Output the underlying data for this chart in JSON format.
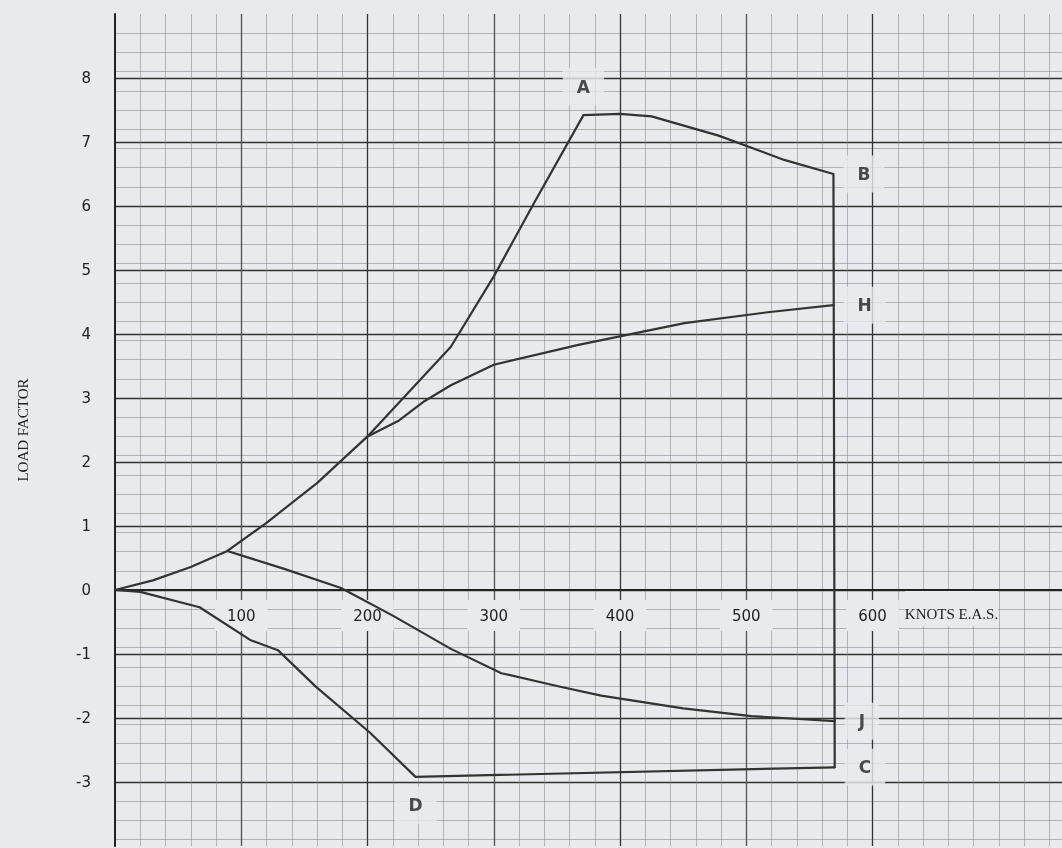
{
  "chart_data": {
    "type": "line",
    "xlabel": "KNOTS E.A.S.",
    "ylabel": "LOAD FACTOR",
    "xlim": [
      0,
      750
    ],
    "ylim": [
      -4,
      9
    ],
    "xticks": [
      100,
      200,
      300,
      400,
      500,
      600
    ],
    "yticks": [
      -3,
      -2,
      -1,
      0,
      1,
      2,
      3,
      4,
      5,
      6,
      7,
      8
    ],
    "grid": true,
    "marker": "none",
    "line_style": "solid",
    "series": [
      {
        "color": "#333333",
        "x": [
          0,
          30,
          60,
          89,
          120,
          160,
          200,
          266,
          300,
          332,
          371,
          400,
          425,
          478,
          530,
          569,
          570
        ],
        "values": [
          0,
          0.15,
          0.36,
          0.61,
          1.05,
          1.67,
          2.4,
          3.8,
          4.9,
          6.05,
          7.42,
          7.44,
          7.4,
          7.1,
          6.72,
          6.5,
          -2.77
        ]
      },
      {
        "color": "#333333",
        "x": [
          0,
          20,
          67,
          107,
          129,
          159,
          202,
          238,
          570
        ],
        "values": [
          0,
          -0.03,
          -0.27,
          -0.78,
          -0.94,
          -1.51,
          -2.23,
          -2.92,
          -2.77
        ]
      },
      {
        "color": "#333333",
        "x": [
          200,
          225,
          245,
          266,
          300,
          367,
          451,
          517,
          569
        ],
        "values": [
          2.4,
          2.65,
          2.95,
          3.2,
          3.52,
          3.83,
          4.17,
          4.34,
          4.45
        ]
      },
      {
        "color": "#333333",
        "x": [
          89,
          134,
          179,
          220,
          266,
          306,
          350,
          385,
          450,
          504,
          570
        ],
        "values": [
          0.61,
          0.33,
          0.03,
          -0.4,
          -0.92,
          -1.3,
          -1.5,
          -1.65,
          -1.85,
          -1.97,
          -2.05
        ]
      }
    ],
    "annotations": [
      {
        "text": "A",
        "x": 371,
        "y": 7.42
      },
      {
        "text": "B",
        "x": 569,
        "y": 6.5
      },
      {
        "text": "H",
        "x": 569,
        "y": 4.45
      },
      {
        "text": "J",
        "x": 570,
        "y": -2.05
      },
      {
        "text": "C",
        "x": 570,
        "y": -2.77
      },
      {
        "text": "D",
        "x": 238,
        "y": -2.92
      }
    ]
  }
}
